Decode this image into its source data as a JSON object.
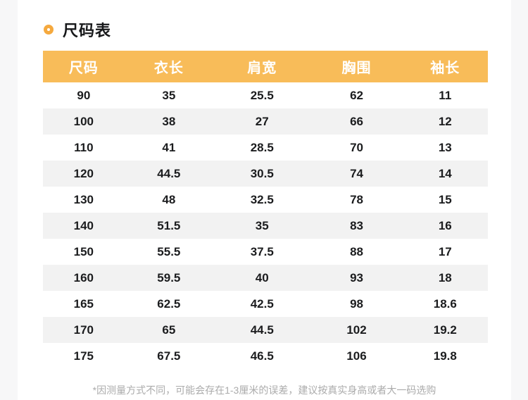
{
  "section": {
    "title": "尺码表",
    "note": "*因测量方式不同，可能会存在1-3厘米的误差，建议按真实身高或者大一码选购"
  },
  "colors": {
    "page_bg": "#F7F7F8",
    "accent_ring": "#F5A93E",
    "table_header_bg": "#F8BC59",
    "alt_row_bg": "#F2F2F2",
    "header_text": "#FFFFFF",
    "cell_text": "#1B1C1E",
    "note_text": "#ABABAB",
    "title_text": "#17181A"
  },
  "chart_data": {
    "type": "table",
    "title": "尺码表",
    "columns": [
      "尺码",
      "衣长",
      "肩宽",
      "胸围",
      "袖长"
    ],
    "rows": [
      [
        "90",
        "35",
        "25.5",
        "62",
        "11"
      ],
      [
        "100",
        "38",
        "27",
        "66",
        "12"
      ],
      [
        "110",
        "41",
        "28.5",
        "70",
        "13"
      ],
      [
        "120",
        "44.5",
        "30.5",
        "74",
        "14"
      ],
      [
        "130",
        "48",
        "32.5",
        "78",
        "15"
      ],
      [
        "140",
        "51.5",
        "35",
        "83",
        "16"
      ],
      [
        "150",
        "55.5",
        "37.5",
        "88",
        "17"
      ],
      [
        "160",
        "59.5",
        "40",
        "93",
        "18"
      ],
      [
        "165",
        "62.5",
        "42.5",
        "98",
        "18.6"
      ],
      [
        "170",
        "65",
        "44.5",
        "102",
        "19.2"
      ],
      [
        "175",
        "67.5",
        "46.5",
        "106",
        "19.8"
      ]
    ],
    "footnote": "*因测量方式不同，可能会存在1-3厘米的误差，建议按真实身高或者大一码选购",
    "layout": {
      "alternating_rows": true,
      "grid_lines": false,
      "header_style": "solid-fill"
    }
  }
}
